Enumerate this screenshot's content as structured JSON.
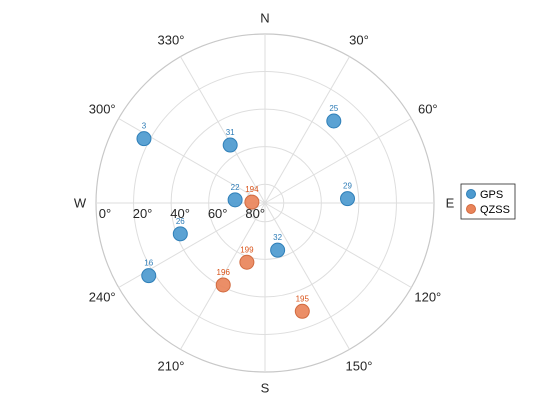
{
  "chart_data": {
    "type": "scatter",
    "projection": "polar-skyplot",
    "title": "",
    "cardinal_labels": [
      "N",
      "E",
      "S",
      "W"
    ],
    "azimuth_tick_labels": [
      "30°",
      "60°",
      "120°",
      "150°",
      "210°",
      "240°",
      "300°",
      "330°"
    ],
    "azimuth_ticks": [
      30,
      60,
      120,
      150,
      210,
      240,
      300,
      330
    ],
    "elevation_tick_labels": [
      "0°",
      "20°",
      "40°",
      "60°",
      "80°"
    ],
    "elevation_ticks": [
      0,
      20,
      40,
      60,
      80
    ],
    "elevation_range": [
      0,
      90
    ],
    "grid": true,
    "legend_position": "right",
    "series": [
      {
        "name": "GPS",
        "color": "#4D9ACF",
        "label_color": "#2C7BB6",
        "points": [
          {
            "id": "3",
            "azimuth": 298,
            "elevation": 17
          },
          {
            "id": "25",
            "azimuth": 40,
            "elevation": 33
          },
          {
            "id": "31",
            "azimuth": 329,
            "elevation": 54
          },
          {
            "id": "22",
            "azimuth": 276,
            "elevation": 74
          },
          {
            "id": "29",
            "azimuth": 87,
            "elevation": 46
          },
          {
            "id": "26",
            "azimuth": 250,
            "elevation": 42
          },
          {
            "id": "16",
            "azimuth": 238,
            "elevation": 17
          },
          {
            "id": "32",
            "azimuth": 165,
            "elevation": 64
          }
        ]
      },
      {
        "name": "QZSS",
        "color": "#E9845A",
        "label_color": "#D95319",
        "points": [
          {
            "id": "194",
            "azimuth": 274,
            "elevation": 83
          },
          {
            "id": "199",
            "azimuth": 197,
            "elevation": 57
          },
          {
            "id": "196",
            "azimuth": 207,
            "elevation": 41
          },
          {
            "id": "195",
            "azimuth": 161,
            "elevation": 29
          }
        ]
      }
    ]
  },
  "colors": {
    "grid": "#DEDEDE",
    "outer_ring": "#C8C8C8",
    "text": "#262626",
    "marker_edge_gps": "#2F7FB8",
    "marker_edge_qzss": "#D16A3F"
  }
}
